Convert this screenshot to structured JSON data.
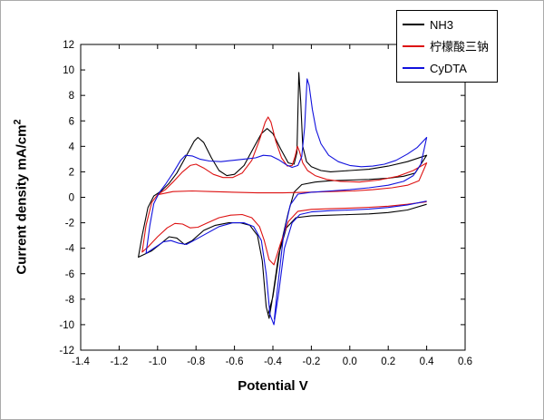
{
  "axis": {
    "x_label": "Potential V",
    "y_label": {
      "text": "Current density mA/cm",
      "sup": "2"
    }
  },
  "chart_data": {
    "type": "line",
    "title": "",
    "xlabel": "Potential V",
    "ylabel": "Current density mA/cm²",
    "xlim": [
      -1.4,
      0.6
    ],
    "ylim": [
      -12,
      12
    ],
    "grid": false,
    "legend_position": "top-right",
    "xtick_labels": [
      "-1.4",
      "-1.2",
      "-1.0",
      "-0.8",
      "-0.6",
      "-0.4",
      "-0.2",
      "0.0",
      "0.2",
      "0.4",
      "0.6"
    ],
    "ytick_labels": [
      "-12",
      "-10",
      "-8",
      "-6",
      "-4",
      "-2",
      "0",
      "2",
      "4",
      "6",
      "8",
      "10",
      "12"
    ],
    "series": [
      {
        "name": "NH3",
        "color": "#000000",
        "segments": [
          [
            [
              0.4,
              -0.55
            ],
            [
              0.3,
              -1.0
            ],
            [
              0.2,
              -1.2
            ],
            [
              0.1,
              -1.3
            ],
            [
              0.0,
              -1.35
            ],
            [
              -0.1,
              -1.4
            ],
            [
              -0.2,
              -1.45
            ],
            [
              -0.28,
              -1.6
            ],
            [
              -0.33,
              -2.4
            ],
            [
              -0.37,
              -4.5
            ],
            [
              -0.405,
              -8.2
            ],
            [
              -0.42,
              -9.5
            ],
            [
              -0.435,
              -8.6
            ],
            [
              -0.455,
              -5.0
            ],
            [
              -0.48,
              -3.0
            ],
            [
              -0.52,
              -2.2
            ],
            [
              -0.57,
              -2.0
            ],
            [
              -0.63,
              -2.0
            ],
            [
              -0.7,
              -2.2
            ],
            [
              -0.76,
              -2.6
            ],
            [
              -0.82,
              -3.4
            ],
            [
              -0.86,
              -3.7
            ],
            [
              -0.9,
              -3.2
            ],
            [
              -0.94,
              -3.1
            ],
            [
              -0.98,
              -3.6
            ],
            [
              -1.03,
              -4.2
            ],
            [
              -1.1,
              -4.7
            ],
            [
              -1.08,
              -3.0
            ],
            [
              -1.05,
              -0.8
            ],
            [
              -1.02,
              0.1
            ],
            [
              -0.98,
              0.5
            ],
            [
              -0.94,
              1.1
            ],
            [
              -0.9,
              1.9
            ],
            [
              -0.86,
              3.0
            ],
            [
              -0.81,
              4.4
            ],
            [
              -0.79,
              4.7
            ],
            [
              -0.76,
              4.3
            ],
            [
              -0.72,
              3.1
            ],
            [
              -0.68,
              2.1
            ],
            [
              -0.64,
              1.7
            ],
            [
              -0.6,
              1.8
            ],
            [
              -0.55,
              2.5
            ],
            [
              -0.5,
              3.9
            ],
            [
              -0.46,
              5.0
            ],
            [
              -0.43,
              5.4
            ],
            [
              -0.4,
              5.0
            ],
            [
              -0.36,
              3.8
            ],
            [
              -0.32,
              2.7
            ],
            [
              -0.29,
              2.6
            ],
            [
              -0.275,
              3.5
            ],
            [
              -0.265,
              9.8
            ],
            [
              -0.255,
              7.5
            ],
            [
              -0.245,
              4.0
            ],
            [
              -0.225,
              2.8
            ],
            [
              -0.2,
              2.4
            ],
            [
              -0.15,
              2.1
            ],
            [
              -0.1,
              2.0
            ],
            [
              0.0,
              2.1
            ],
            [
              0.1,
              2.2
            ],
            [
              0.2,
              2.45
            ],
            [
              0.3,
              2.8
            ],
            [
              0.4,
              3.3
            ],
            [
              0.34,
              1.9
            ],
            [
              0.28,
              1.65
            ],
            [
              0.2,
              1.5
            ],
            [
              0.1,
              1.4
            ],
            [
              0.0,
              1.35
            ],
            [
              -0.1,
              1.3
            ],
            [
              -0.18,
              1.2
            ],
            [
              -0.25,
              1.0
            ],
            [
              -0.29,
              0.4
            ],
            [
              -0.32,
              -1.2
            ],
            [
              -0.36,
              -3.8
            ],
            [
              -0.4,
              -7.8
            ],
            [
              -0.425,
              -9.2
            ]
          ]
        ]
      },
      {
        "name": "柠檬酸三钠",
        "color": "#dd1111",
        "segments": [
          [
            [
              0.4,
              -0.35
            ],
            [
              0.3,
              -0.55
            ],
            [
              0.2,
              -0.7
            ],
            [
              0.1,
              -0.78
            ],
            [
              0.0,
              -0.85
            ],
            [
              -0.1,
              -0.9
            ],
            [
              -0.2,
              -0.95
            ],
            [
              -0.27,
              -1.1
            ],
            [
              -0.32,
              -1.9
            ],
            [
              -0.36,
              -3.6
            ],
            [
              -0.395,
              -5.3
            ],
            [
              -0.42,
              -4.9
            ],
            [
              -0.445,
              -3.4
            ],
            [
              -0.47,
              -2.3
            ],
            [
              -0.51,
              -1.6
            ],
            [
              -0.56,
              -1.35
            ],
            [
              -0.62,
              -1.4
            ],
            [
              -0.68,
              -1.6
            ],
            [
              -0.74,
              -2.0
            ],
            [
              -0.79,
              -2.35
            ],
            [
              -0.83,
              -2.4
            ],
            [
              -0.87,
              -2.1
            ],
            [
              -0.91,
              -2.05
            ],
            [
              -0.95,
              -2.4
            ],
            [
              -1.0,
              -3.1
            ],
            [
              -1.05,
              -3.9
            ],
            [
              -1.08,
              -4.3
            ],
            [
              -1.06,
              -2.2
            ],
            [
              -1.03,
              -0.4
            ],
            [
              -1.0,
              0.2
            ],
            [
              -0.96,
              0.6
            ],
            [
              -0.92,
              1.2
            ],
            [
              -0.87,
              2.0
            ],
            [
              -0.83,
              2.5
            ],
            [
              -0.8,
              2.6
            ],
            [
              -0.76,
              2.3
            ],
            [
              -0.71,
              1.8
            ],
            [
              -0.66,
              1.55
            ],
            [
              -0.61,
              1.55
            ],
            [
              -0.56,
              1.9
            ],
            [
              -0.51,
              2.9
            ],
            [
              -0.47,
              4.5
            ],
            [
              -0.44,
              5.9
            ],
            [
              -0.425,
              6.3
            ],
            [
              -0.41,
              5.9
            ],
            [
              -0.385,
              4.4
            ],
            [
              -0.355,
              3.1
            ],
            [
              -0.325,
              2.45
            ],
            [
              -0.3,
              2.5
            ],
            [
              -0.285,
              3.2
            ],
            [
              -0.272,
              4.0
            ],
            [
              -0.262,
              3.6
            ],
            [
              -0.245,
              2.7
            ],
            [
              -0.22,
              2.1
            ],
            [
              -0.18,
              1.7
            ],
            [
              -0.12,
              1.4
            ],
            [
              -0.05,
              1.25
            ],
            [
              0.05,
              1.2
            ],
            [
              0.15,
              1.35
            ],
            [
              0.25,
              1.65
            ],
            [
              0.33,
              2.1
            ],
            [
              0.4,
              2.7
            ],
            [
              0.36,
              1.3
            ],
            [
              0.3,
              0.95
            ],
            [
              0.22,
              0.75
            ],
            [
              0.12,
              0.6
            ],
            [
              0.02,
              0.5
            ],
            [
              -0.1,
              0.45
            ],
            [
              -0.22,
              0.4
            ],
            [
              -0.35,
              0.35
            ],
            [
              -0.48,
              0.35
            ],
            [
              -0.6,
              0.4
            ],
            [
              -0.72,
              0.45
            ],
            [
              -0.82,
              0.5
            ],
            [
              -0.92,
              0.45
            ],
            [
              -1.0,
              0.2
            ]
          ]
        ]
      },
      {
        "name": "CyDTA",
        "color": "#1111dd",
        "segments": [
          [
            [
              0.4,
              -0.3
            ],
            [
              0.3,
              -0.6
            ],
            [
              0.2,
              -0.8
            ],
            [
              0.1,
              -0.92
            ],
            [
              0.0,
              -1.0
            ],
            [
              -0.1,
              -1.05
            ],
            [
              -0.2,
              -1.15
            ],
            [
              -0.26,
              -1.35
            ],
            [
              -0.3,
              -2.0
            ],
            [
              -0.34,
              -4.0
            ],
            [
              -0.37,
              -7.5
            ],
            [
              -0.395,
              -10.0
            ],
            [
              -0.415,
              -9.2
            ],
            [
              -0.435,
              -6.0
            ],
            [
              -0.46,
              -3.4
            ],
            [
              -0.5,
              -2.3
            ],
            [
              -0.55,
              -2.0
            ],
            [
              -0.61,
              -2.0
            ],
            [
              -0.68,
              -2.3
            ],
            [
              -0.74,
              -2.8
            ],
            [
              -0.8,
              -3.3
            ],
            [
              -0.85,
              -3.7
            ],
            [
              -0.89,
              -3.6
            ],
            [
              -0.93,
              -3.4
            ],
            [
              -0.97,
              -3.5
            ],
            [
              -1.02,
              -4.0
            ],
            [
              -1.06,
              -4.4
            ],
            [
              -1.04,
              -2.2
            ],
            [
              -1.02,
              -0.5
            ],
            [
              -0.99,
              0.4
            ],
            [
              -0.96,
              1.0
            ],
            [
              -0.92,
              1.9
            ],
            [
              -0.88,
              2.9
            ],
            [
              -0.855,
              3.3
            ],
            [
              -0.82,
              3.25
            ],
            [
              -0.78,
              3.0
            ],
            [
              -0.73,
              2.85
            ],
            [
              -0.67,
              2.8
            ],
            [
              -0.61,
              2.9
            ],
            [
              -0.55,
              3.0
            ],
            [
              -0.49,
              3.1
            ],
            [
              -0.45,
              3.3
            ],
            [
              -0.41,
              3.25
            ],
            [
              -0.37,
              2.95
            ],
            [
              -0.33,
              2.55
            ],
            [
              -0.3,
              2.35
            ],
            [
              -0.27,
              2.5
            ],
            [
              -0.25,
              3.2
            ],
            [
              -0.235,
              5.5
            ],
            [
              -0.222,
              9.3
            ],
            [
              -0.212,
              8.8
            ],
            [
              -0.195,
              6.9
            ],
            [
              -0.175,
              5.3
            ],
            [
              -0.15,
              4.2
            ],
            [
              -0.11,
              3.3
            ],
            [
              -0.06,
              2.8
            ],
            [
              0.0,
              2.5
            ],
            [
              0.06,
              2.4
            ],
            [
              0.12,
              2.45
            ],
            [
              0.18,
              2.6
            ],
            [
              0.24,
              2.9
            ],
            [
              0.3,
              3.4
            ],
            [
              0.35,
              3.9
            ],
            [
              0.4,
              4.7
            ],
            [
              0.37,
              2.6
            ],
            [
              0.33,
              1.7
            ],
            [
              0.28,
              1.25
            ],
            [
              0.2,
              0.95
            ],
            [
              0.1,
              0.75
            ],
            [
              0.0,
              0.6
            ],
            [
              -0.1,
              0.5
            ],
            [
              -0.2,
              0.4
            ],
            [
              -0.27,
              0.25
            ],
            [
              -0.31,
              -0.6
            ],
            [
              -0.345,
              -3.0
            ],
            [
              -0.375,
              -7.0
            ],
            [
              -0.393,
              -9.6
            ]
          ]
        ]
      }
    ]
  }
}
